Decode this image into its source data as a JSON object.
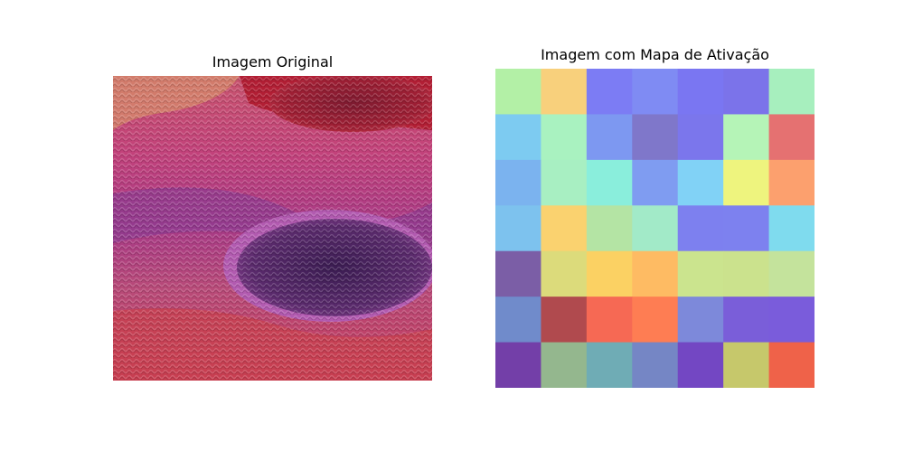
{
  "left_panel": {
    "title": "Imagem Original",
    "image": {
      "subject": "close-up of knitted wool fabric",
      "colors": {
        "red_top": "#b21e34",
        "pink": "#c2417a",
        "magenta": "#a83a86",
        "purple": "#6c2c7a",
        "dark_purple": "#3f1d4a",
        "orange": "#d4866a"
      }
    }
  },
  "right_panel": {
    "title": "Imagem com Mapa de Ativação",
    "grid": {
      "rows": 7,
      "cols": 7,
      "cells": [
        [
          "#b3f0a6",
          "#f8d07c",
          "#7c7cf4",
          "#7f8bf3",
          "#7a76f2",
          "#7b73ea",
          "#a7efbe"
        ],
        [
          "#7dcbf1",
          "#a9f2c0",
          "#7d98f1",
          "#7f77ca",
          "#7b76ec",
          "#b5f4b7",
          "#e57171"
        ],
        [
          "#7bb3ef",
          "#a8efc2",
          "#8aeedc",
          "#7f9cf1",
          "#81d2f6",
          "#eef47e",
          "#fca06e"
        ],
        [
          "#7dc2ee",
          "#fad26f",
          "#b4e4a4",
          "#a2eac8",
          "#7d80ef",
          "#7d81ef",
          "#7fdbee"
        ],
        [
          "#7b5ea6",
          "#dcdb7b",
          "#fbd163",
          "#febb63",
          "#cbe48e",
          "#cbe28d",
          "#c4e39c"
        ],
        [
          "#708bcb",
          "#b04a4e",
          "#f66954",
          "#fe7d53",
          "#7d89da",
          "#7a5ed9",
          "#7a5cdb"
        ],
        [
          "#733fa8",
          "#94b78e",
          "#6facb5",
          "#7586c5",
          "#7347c3",
          "#c6c86b",
          "#ef6249"
        ]
      ]
    }
  }
}
